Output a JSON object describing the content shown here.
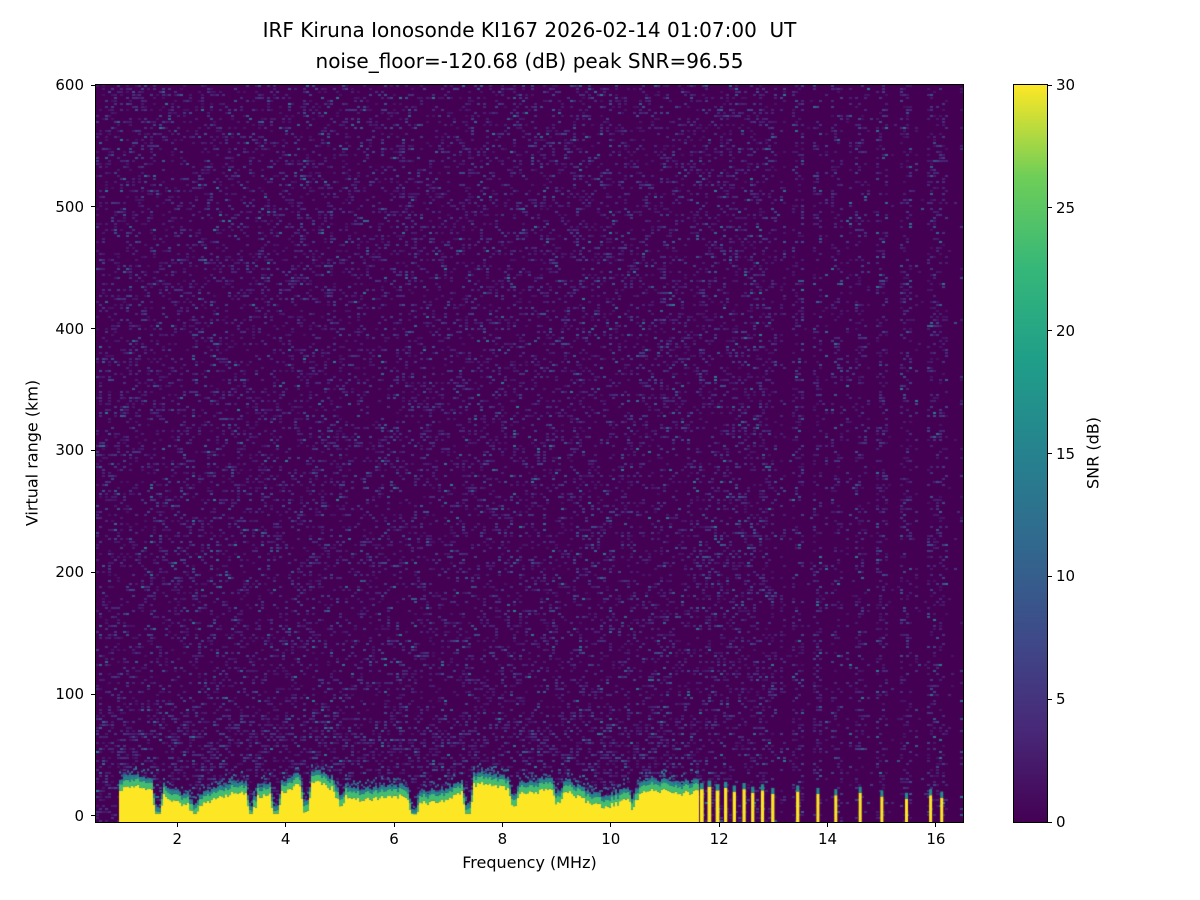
{
  "chart_data": {
    "type": "heatmap",
    "title": "IRF Kiruna Ionosonde KI167 2026-02-14 01:07:00  UT",
    "subtitle": "noise_floor=-120.68 (dB) peak SNR=96.55",
    "xlabel": "Frequency (MHz)",
    "ylabel": "Virtual range (km)",
    "colorbar_label": "SNR (dB)",
    "xlim": [
      0.5,
      16.5
    ],
    "ylim": [
      -5,
      600
    ],
    "clim": [
      0,
      30
    ],
    "x_ticks": [
      2,
      4,
      6,
      8,
      10,
      12,
      14,
      16
    ],
    "y_ticks": [
      0,
      100,
      200,
      300,
      400,
      500,
      600
    ],
    "colorbar_ticks": [
      0,
      5,
      10,
      15,
      20,
      25,
      30
    ],
    "colormap": "viridis",
    "viridis_anchors": [
      [
        0.0,
        "#440154"
      ],
      [
        0.125,
        "#482878"
      ],
      [
        0.25,
        "#3e4a89"
      ],
      [
        0.375,
        "#31688e"
      ],
      [
        0.5,
        "#26828e"
      ],
      [
        0.625,
        "#1f9e89"
      ],
      [
        0.75,
        "#35b779"
      ],
      [
        0.875,
        "#6ece58"
      ],
      [
        1.0,
        "#fde725"
      ]
    ],
    "noise": {
      "seed": 1337,
      "density": 0.24,
      "snr_db_range": [
        1.5,
        14
      ],
      "right_active_col_fraction": 0.3,
      "right_quiet_density_factor": 0.06,
      "low_range_boost_below_km": 85,
      "low_range_boost_factor": 1.5
    },
    "ground_echo": {
      "x_range_mhz": [
        0.93,
        11.62
      ],
      "top_km_mean": 27,
      "top_km_variation": 10,
      "snr_db": 30,
      "notches": [
        [
          1.62,
          0.25
        ],
        [
          2.3,
          0.55
        ],
        [
          3.35,
          0.3
        ],
        [
          3.8,
          0.3
        ],
        [
          4.35,
          0.35
        ],
        [
          5.0,
          0.6
        ],
        [
          6.35,
          0.25
        ],
        [
          7.35,
          0.3
        ],
        [
          8.2,
          0.6
        ],
        [
          9.0,
          0.65
        ],
        [
          10.4,
          0.6
        ]
      ]
    },
    "pulse_stripes": [
      [
        11.68,
        0.07,
        27
      ],
      [
        11.82,
        0.07,
        29
      ],
      [
        11.97,
        0.07,
        26
      ],
      [
        12.12,
        0.06,
        28
      ],
      [
        12.28,
        0.06,
        25
      ],
      [
        12.46,
        0.06,
        27
      ],
      [
        12.62,
        0.06,
        24
      ],
      [
        12.8,
        0.06,
        26
      ],
      [
        12.99,
        0.06,
        23
      ],
      [
        13.45,
        0.06,
        25
      ],
      [
        13.82,
        0.05,
        23
      ],
      [
        14.15,
        0.05,
        22
      ],
      [
        14.6,
        0.05,
        24
      ],
      [
        15.0,
        0.05,
        21
      ],
      [
        15.45,
        0.04,
        19
      ],
      [
        15.9,
        0.05,
        22
      ],
      [
        16.1,
        0.04,
        20
      ]
    ],
    "legend_position": "right-colorbar",
    "grid": false
  }
}
